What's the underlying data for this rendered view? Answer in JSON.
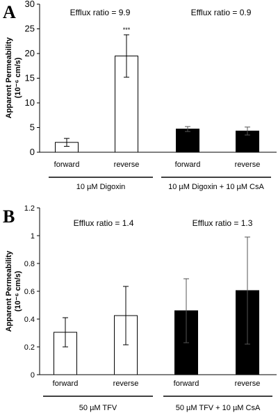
{
  "chart_data": [
    {
      "panel_label": "A",
      "type": "bar",
      "ylabel_lines": [
        "Apparent Permeability",
        "(10⁻⁶ cm/s)"
      ],
      "ylim": [
        0,
        30
      ],
      "yticks": [
        0,
        5,
        10,
        15,
        20,
        25,
        30
      ],
      "categories": [
        "forward",
        "reverse",
        "forward",
        "reverse"
      ],
      "values": [
        2.0,
        19.5,
        4.7,
        4.3
      ],
      "errors": [
        0.8,
        4.3,
        0.5,
        0.8
      ],
      "bar_fill": [
        "#ffffff",
        "#ffffff",
        "#000000",
        "#000000"
      ],
      "annotations": [
        "",
        "***",
        "",
        ""
      ],
      "groups": [
        {
          "label": "10 µM Digoxin",
          "efflux_ratio": "Efflux ratio = 9.9"
        },
        {
          "label": "10 µM Digoxin + 10 µM CsA",
          "efflux_ratio": "Efflux ratio = 0.9"
        }
      ],
      "grid": false
    },
    {
      "panel_label": "B",
      "type": "bar",
      "ylabel_lines": [
        "Apparent Permeability",
        "(10⁻⁶ cm/s)"
      ],
      "ylim": [
        0,
        1.2
      ],
      "yticks": [
        0,
        0.2,
        0.4,
        0.6,
        0.8,
        1,
        1.2
      ],
      "categories": [
        "forward",
        "reverse",
        "forward",
        "reverse"
      ],
      "values": [
        0.305,
        0.425,
        0.46,
        0.605
      ],
      "errors": [
        0.105,
        0.21,
        0.23,
        0.385
      ],
      "bar_fill": [
        "#ffffff",
        "#ffffff",
        "#000000",
        "#000000"
      ],
      "annotations": [
        "",
        "",
        "",
        ""
      ],
      "groups": [
        {
          "label": "50 µM TFV",
          "efflux_ratio": "Efflux ratio = 1.4"
        },
        {
          "label": "50 µM TFV + 10 µM CsA",
          "efflux_ratio": "Efflux ratio = 1.3"
        }
      ],
      "grid": false
    }
  ]
}
